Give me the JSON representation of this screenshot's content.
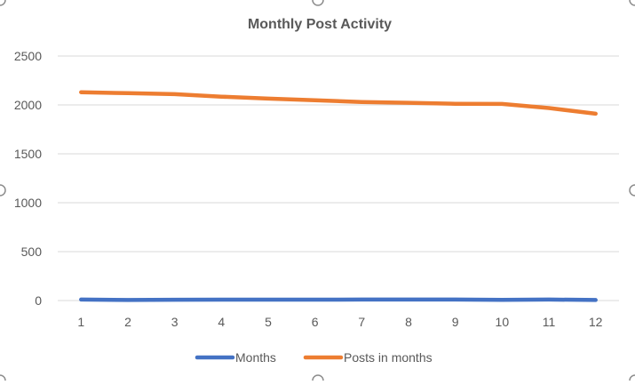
{
  "chart_data": {
    "type": "line",
    "title": "Monthly Post Activity",
    "xlabel": "",
    "ylabel": "",
    "categories": [
      "1",
      "2",
      "3",
      "4",
      "5",
      "6",
      "7",
      "8",
      "9",
      "10",
      "11",
      "12"
    ],
    "series": [
      {
        "name": "Months",
        "color": "#4472C4",
        "values": [
          10,
          5,
          8,
          9,
          9,
          9,
          10,
          10,
          10,
          6,
          10,
          5
        ]
      },
      {
        "name": "Posts in months",
        "color": "#ED7D31",
        "values": [
          2130,
          2120,
          2110,
          2085,
          2065,
          2048,
          2030,
          2022,
          2012,
          2010,
          1968,
          1910
        ]
      }
    ],
    "yticks": [
      "0",
      "500",
      "1000",
      "1500",
      "2000",
      "2500"
    ],
    "ylim": [
      0,
      2500
    ],
    "grid": true,
    "legend": "bottom"
  }
}
